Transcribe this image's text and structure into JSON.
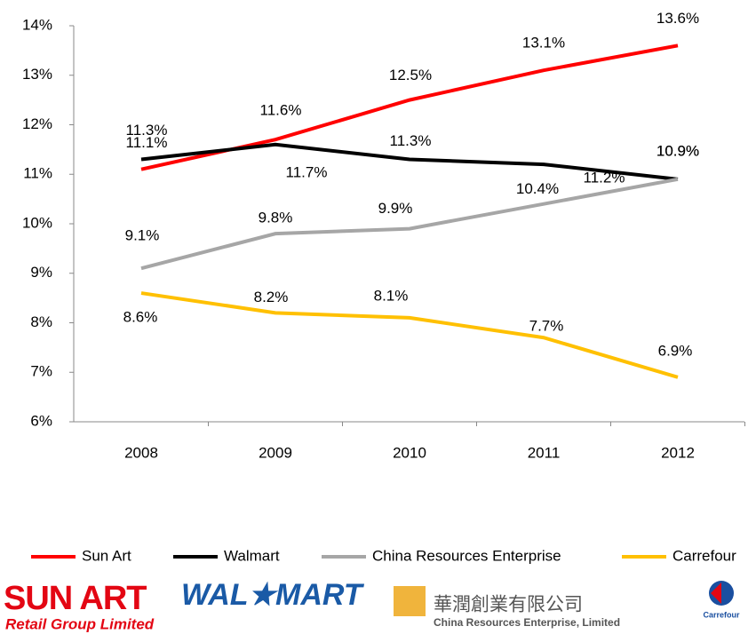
{
  "chart_data": {
    "type": "line",
    "categories": [
      "2008",
      "2009",
      "2010",
      "2011",
      "2012"
    ],
    "series": [
      {
        "name": "Sun Art",
        "color": "#ff0000",
        "values": [
          11.1,
          11.7,
          12.5,
          13.1,
          13.6
        ],
        "value_labels": [
          "11.1%",
          "11.7%",
          "12.5%",
          "13.1%",
          "13.6%"
        ]
      },
      {
        "name": "Walmart",
        "color": "#000000",
        "values": [
          11.3,
          11.6,
          11.3,
          11.2,
          10.9
        ],
        "value_labels": [
          "11.3%",
          "11.6%",
          "11.3%",
          "11.2%",
          "10.9%"
        ]
      },
      {
        "name": "China Resources  Enterprise",
        "color": "#a6a6a6",
        "values": [
          9.1,
          9.8,
          9.9,
          10.4,
          10.9
        ],
        "value_labels": [
          "9.1%",
          "9.8%",
          "9.9%",
          "10.4%",
          "10.9%"
        ]
      },
      {
        "name": "Carrefour",
        "color": "#ffc000",
        "values": [
          8.6,
          8.2,
          8.1,
          7.7,
          6.9
        ],
        "value_labels": [
          "8.6%",
          "8.2%",
          "8.1%",
          "7.7%",
          "6.9%"
        ]
      }
    ],
    "ylim": [
      6,
      14
    ],
    "yticks": [
      {
        "value": 6,
        "label": "6%"
      },
      {
        "value": 7,
        "label": "7%"
      },
      {
        "value": 8,
        "label": "8%"
      },
      {
        "value": 9,
        "label": "9%"
      },
      {
        "value": 10,
        "label": "10%"
      },
      {
        "value": 11,
        "label": "11%"
      },
      {
        "value": 12,
        "label": "12%"
      },
      {
        "value": 13,
        "label": "13%"
      },
      {
        "value": 14,
        "label": "14%"
      }
    ],
    "legend": "bottom",
    "grid": false
  },
  "logos": {
    "sun_art": "SUN ART",
    "sun_art_sub": "Retail Group Limited",
    "walmart": "WAL★MART",
    "cre_cn": "華潤創業有限公司",
    "cre_en": "China Resources Enterprise, Limited",
    "carrefour": "Carrefour"
  }
}
